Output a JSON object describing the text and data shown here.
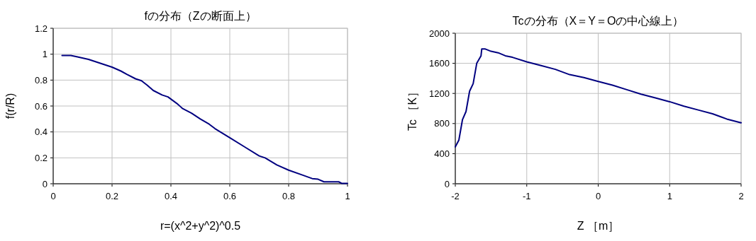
{
  "chart_data": [
    {
      "type": "line",
      "title": "fの分布（Zの断面上）",
      "xlabel": "r=(x^2+y^2)^0.5",
      "ylabel": "f(r/R)",
      "xlim": [
        0,
        1
      ],
      "ylim": [
        0,
        1.2
      ],
      "xticks": [
        0,
        0.2,
        0.4,
        0.6,
        0.8,
        1
      ],
      "yticks": [
        0,
        0.2,
        0.4,
        0.6,
        0.8,
        1,
        1.2
      ],
      "grid": true,
      "series": [
        {
          "color": "#000080",
          "x": [
            0.03,
            0.06,
            0.08,
            0.12,
            0.16,
            0.2,
            0.23,
            0.25,
            0.28,
            0.3,
            0.32,
            0.34,
            0.37,
            0.39,
            0.42,
            0.44,
            0.47,
            0.5,
            0.53,
            0.55,
            0.6,
            0.65,
            0.7,
            0.72,
            0.76,
            0.8,
            0.85,
            0.88,
            0.9,
            0.92,
            0.97,
            0.98,
            1.0
          ],
          "values": [
            0.99,
            0.99,
            0.98,
            0.96,
            0.93,
            0.9,
            0.87,
            0.845,
            0.81,
            0.795,
            0.76,
            0.72,
            0.685,
            0.67,
            0.62,
            0.58,
            0.545,
            0.5,
            0.46,
            0.425,
            0.355,
            0.285,
            0.215,
            0.2,
            0.145,
            0.105,
            0.065,
            0.04,
            0.035,
            0.015,
            0.015,
            0.003,
            0.003
          ]
        }
      ]
    },
    {
      "type": "line",
      "title": "Tcの分布（X＝Y＝Oの中心線上）",
      "xlabel": "Z ［m］",
      "ylabel": "Tc ［K］",
      "xlim": [
        -2,
        2
      ],
      "ylim": [
        0,
        2000
      ],
      "xticks": [
        -2,
        -1,
        0,
        1,
        2
      ],
      "yticks": [
        0,
        400,
        800,
        1200,
        1600,
        2000
      ],
      "grid": true,
      "series": [
        {
          "color": "#000080",
          "x": [
            -2,
            -1.95,
            -1.9,
            -1.85,
            -1.8,
            -1.75,
            -1.7,
            -1.64,
            -1.63,
            -1.58,
            -1.5,
            -1.4,
            -1.3,
            -1.2,
            -1.0,
            -0.8,
            -0.6,
            -0.4,
            -0.2,
            0,
            0.2,
            0.4,
            0.6,
            0.8,
            1.0,
            1.2,
            1.4,
            1.6,
            1.8,
            2.0
          ],
          "values": [
            490,
            580,
            850,
            960,
            1230,
            1330,
            1600,
            1700,
            1790,
            1790,
            1760,
            1740,
            1700,
            1680,
            1620,
            1570,
            1520,
            1450,
            1410,
            1360,
            1310,
            1250,
            1190,
            1140,
            1090,
            1030,
            980,
            930,
            860,
            810
          ]
        }
      ]
    }
  ]
}
